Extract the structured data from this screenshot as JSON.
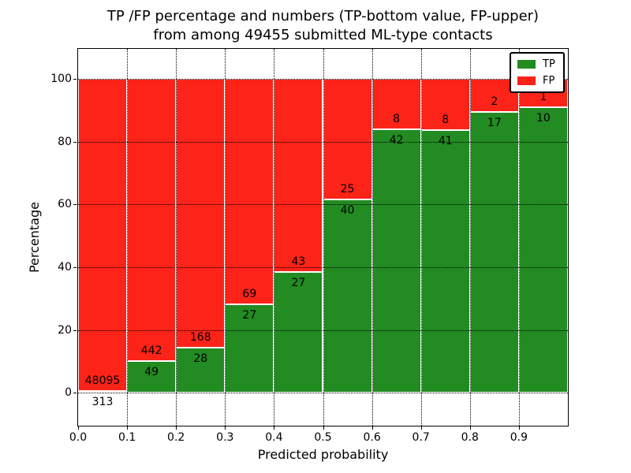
{
  "chart_data": {
    "type": "bar",
    "stacked": true,
    "title": "TP /FP percentage and numbers (TP-bottom value, FP-upper)\nfrom among 49455 submitted ML-type contacts",
    "xlabel": "Predicted probability",
    "ylabel": "Percentage",
    "x_tick_labels": [
      "0.0",
      "0.1",
      "0.2",
      "0.3",
      "0.4",
      "0.5",
      "0.6",
      "0.7",
      "0.8",
      "0.9"
    ],
    "y_ticks": [
      0,
      20,
      40,
      60,
      80,
      100
    ],
    "xlim": [
      0.0,
      1.0
    ],
    "ylim": [
      -10.5,
      109.5
    ],
    "grid": "dotted",
    "legend_position": "upper right",
    "bin_width": 0.1,
    "bin_starts": [
      0.0,
      0.1,
      0.2,
      0.3,
      0.4,
      0.5,
      0.6,
      0.7,
      0.8,
      0.9
    ],
    "series": [
      {
        "name": "TP",
        "color": "#228b22",
        "values": [
          313,
          49,
          28,
          27,
          27,
          40,
          42,
          41,
          17,
          10
        ]
      },
      {
        "name": "FP",
        "color": "#fc2319",
        "values": [
          48095,
          442,
          168,
          69,
          43,
          25,
          8,
          8,
          2,
          1
        ]
      }
    ],
    "tp_percent_heights": [
      0.65,
      9.98,
      14.29,
      28.13,
      38.57,
      61.54,
      84.0,
      83.67,
      89.47,
      90.91
    ],
    "total_contacts": 49455
  },
  "colors": {
    "tp_green": "#228b22",
    "fp_red": "#fc2319",
    "background": "#ffffff",
    "text": "#000000"
  }
}
